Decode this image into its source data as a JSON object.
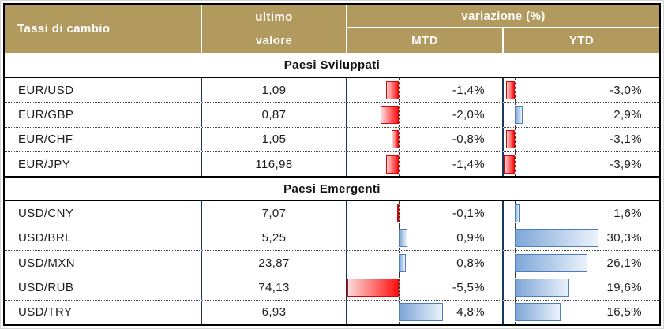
{
  "header": {
    "col1": "Tassi di cambio",
    "ultimo": "ultimo",
    "valore": "valore",
    "variazione": "variazione (%)",
    "mtd": "MTD",
    "ytd": "YTD"
  },
  "colors": {
    "header_bg": "#b2995e",
    "header_text": "#ffffff",
    "grid_line": "#17375d",
    "negative_bar_border": "#e00000",
    "negative_bar_fill": "#ff1010",
    "positive_bar_border": "#4d7ebf",
    "positive_bar_fill": "#7ea6d7"
  },
  "sections": [
    {
      "title": "Paesi Sviluppati",
      "rows": [
        {
          "pair": "EUR/USD",
          "value": "1,09",
          "mtd": -1.4,
          "mtd_label": "-1,4%",
          "ytd": -3.0,
          "ytd_label": "-3,0%"
        },
        {
          "pair": "EUR/GBP",
          "value": "0,87",
          "mtd": -2.0,
          "mtd_label": "-2,0%",
          "ytd": 2.9,
          "ytd_label": "2,9%"
        },
        {
          "pair": "EUR/CHF",
          "value": "1,05",
          "mtd": -0.8,
          "mtd_label": "-0,8%",
          "ytd": -3.1,
          "ytd_label": "-3,1%"
        },
        {
          "pair": "EUR/JPY",
          "value": "116,98",
          "mtd": -1.4,
          "mtd_label": "-1,4%",
          "ytd": -3.9,
          "ytd_label": "-3,9%"
        }
      ]
    },
    {
      "title": "Paesi Emergenti",
      "rows": [
        {
          "pair": "USD/CNY",
          "value": "7,07",
          "mtd": -0.1,
          "mtd_label": "-0,1%",
          "ytd": 1.6,
          "ytd_label": "1,6%"
        },
        {
          "pair": "USD/BRL",
          "value": "5,25",
          "mtd": 0.9,
          "mtd_label": "0,9%",
          "ytd": 30.3,
          "ytd_label": "30,3%"
        },
        {
          "pair": "USD/MXN",
          "value": "23,87",
          "mtd": 0.8,
          "mtd_label": "0,8%",
          "ytd": 26.1,
          "ytd_label": "26,1%"
        },
        {
          "pair": "USD/RUB",
          "value": "74,13",
          "mtd": -5.5,
          "mtd_label": "-5,5%",
          "ytd": 19.6,
          "ytd_label": "19,6%"
        },
        {
          "pair": "USD/TRY",
          "value": "6,93",
          "mtd": 4.8,
          "mtd_label": "4,8%",
          "ytd": 16.5,
          "ytd_label": "16,5%"
        }
      ]
    }
  ],
  "chart_data": {
    "type": "table",
    "title": "Tassi di cambio",
    "columns": [
      "Tassi di cambio",
      "ultimo valore",
      "variazione (%) MTD",
      "variazione (%) YTD"
    ],
    "sections": [
      {
        "name": "Paesi Sviluppati",
        "rows": [
          [
            "EUR/USD",
            1.09,
            -1.4,
            -3.0
          ],
          [
            "EUR/GBP",
            0.87,
            -2.0,
            2.9
          ],
          [
            "EUR/CHF",
            1.05,
            -0.8,
            -3.1
          ],
          [
            "EUR/JPY",
            116.98,
            -1.4,
            -3.9
          ]
        ]
      },
      {
        "name": "Paesi Emergenti",
        "rows": [
          [
            "USD/CNY",
            7.07,
            -0.1,
            1.6
          ],
          [
            "USD/BRL",
            5.25,
            0.9,
            30.3
          ],
          [
            "USD/MXN",
            23.87,
            0.8,
            26.1
          ],
          [
            "USD/RUB",
            74.13,
            -5.5,
            19.6
          ],
          [
            "USD/TRY",
            6.93,
            4.8,
            16.5
          ]
        ]
      }
    ],
    "bar_axes": {
      "mtd": {
        "min": -5.5,
        "max": 4.8
      },
      "ytd": {
        "min": -3.9,
        "max": 30.3
      }
    },
    "bar_style": "databar: red = negative (points left from dashed zero axis), blue = positive (points right)"
  }
}
